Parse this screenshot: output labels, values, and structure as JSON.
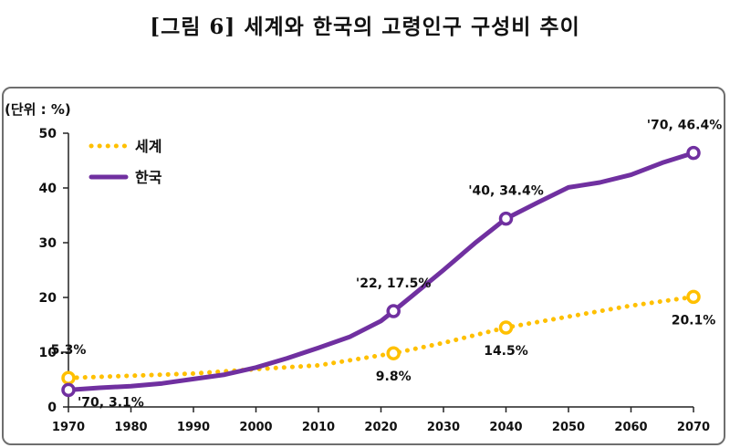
{
  "title": "[그림 6] 세계와 한국의 고령인구 구성비 추이",
  "colors": {
    "world": "#FFC000",
    "korea": "#7030A0",
    "axis": "#222222"
  },
  "chart_data": {
    "type": "line",
    "title": "",
    "unit_label": "(단위 : %)",
    "xlabel": "",
    "ylabel": "",
    "xlim": [
      1970,
      2070
    ],
    "ylim": [
      0,
      50
    ],
    "x_ticks": [
      1970,
      1980,
      1990,
      2000,
      2010,
      2020,
      2030,
      2040,
      2050,
      2060,
      2070
    ],
    "y_ticks": [
      0,
      10,
      20,
      30,
      40,
      50
    ],
    "grid": false,
    "legend_position": "top-left",
    "series": [
      {
        "name": "세계",
        "style": "dotted",
        "color": "#FFC000",
        "points": [
          [
            1970,
            5.3
          ],
          [
            1980,
            5.7
          ],
          [
            1990,
            6.1
          ],
          [
            2000,
            6.9
          ],
          [
            2010,
            7.6
          ],
          [
            2022,
            9.8
          ],
          [
            2030,
            11.7
          ],
          [
            2040,
            14.5
          ],
          [
            2050,
            16.5
          ],
          [
            2060,
            18.5
          ],
          [
            2070,
            20.1
          ]
        ]
      },
      {
        "name": "한국",
        "style": "solid",
        "color": "#7030A0",
        "points": [
          [
            1970,
            3.1
          ],
          [
            1975,
            3.5
          ],
          [
            1980,
            3.8
          ],
          [
            1985,
            4.3
          ],
          [
            1990,
            5.1
          ],
          [
            1995,
            5.9
          ],
          [
            2000,
            7.2
          ],
          [
            2005,
            8.9
          ],
          [
            2010,
            10.8
          ],
          [
            2015,
            12.8
          ],
          [
            2020,
            15.7
          ],
          [
            2022,
            17.5
          ],
          [
            2025,
            20.3
          ],
          [
            2030,
            25.0
          ],
          [
            2035,
            29.9
          ],
          [
            2040,
            34.4
          ],
          [
            2045,
            37.3
          ],
          [
            2050,
            40.1
          ],
          [
            2055,
            41.0
          ],
          [
            2060,
            42.4
          ],
          [
            2065,
            44.6
          ],
          [
            2070,
            46.4
          ]
        ]
      }
    ],
    "markers": [
      {
        "series": "세계",
        "x": 1970,
        "y": 5.3
      },
      {
        "series": "세계",
        "x": 2022,
        "y": 9.8
      },
      {
        "series": "세계",
        "x": 2040,
        "y": 14.5
      },
      {
        "series": "세계",
        "x": 2070,
        "y": 20.1
      },
      {
        "series": "한국",
        "x": 1970,
        "y": 3.1
      },
      {
        "series": "한국",
        "x": 2022,
        "y": 17.5
      },
      {
        "series": "한국",
        "x": 2040,
        "y": 34.4
      },
      {
        "series": "한국",
        "x": 2070,
        "y": 46.4
      }
    ],
    "annotations": [
      {
        "text": "5.3%",
        "x": 1970,
        "y": 5.3,
        "pos": "above"
      },
      {
        "text": "9.8%",
        "x": 2022,
        "y": 9.8,
        "pos": "below"
      },
      {
        "text": "14.5%",
        "x": 2040,
        "y": 14.5,
        "pos": "below"
      },
      {
        "text": "20.1%",
        "x": 2070,
        "y": 20.1,
        "pos": "below"
      },
      {
        "text": "'70, 3.1%",
        "x": 1970,
        "y": 3.1,
        "pos": "below-right"
      },
      {
        "text": "'22, 17.5%",
        "x": 2022,
        "y": 17.5,
        "pos": "above"
      },
      {
        "text": "'40, 34.4%",
        "x": 2040,
        "y": 34.4,
        "pos": "above"
      },
      {
        "text": "'70, 46.4%",
        "x": 2070,
        "y": 46.4,
        "pos": "above"
      }
    ]
  }
}
